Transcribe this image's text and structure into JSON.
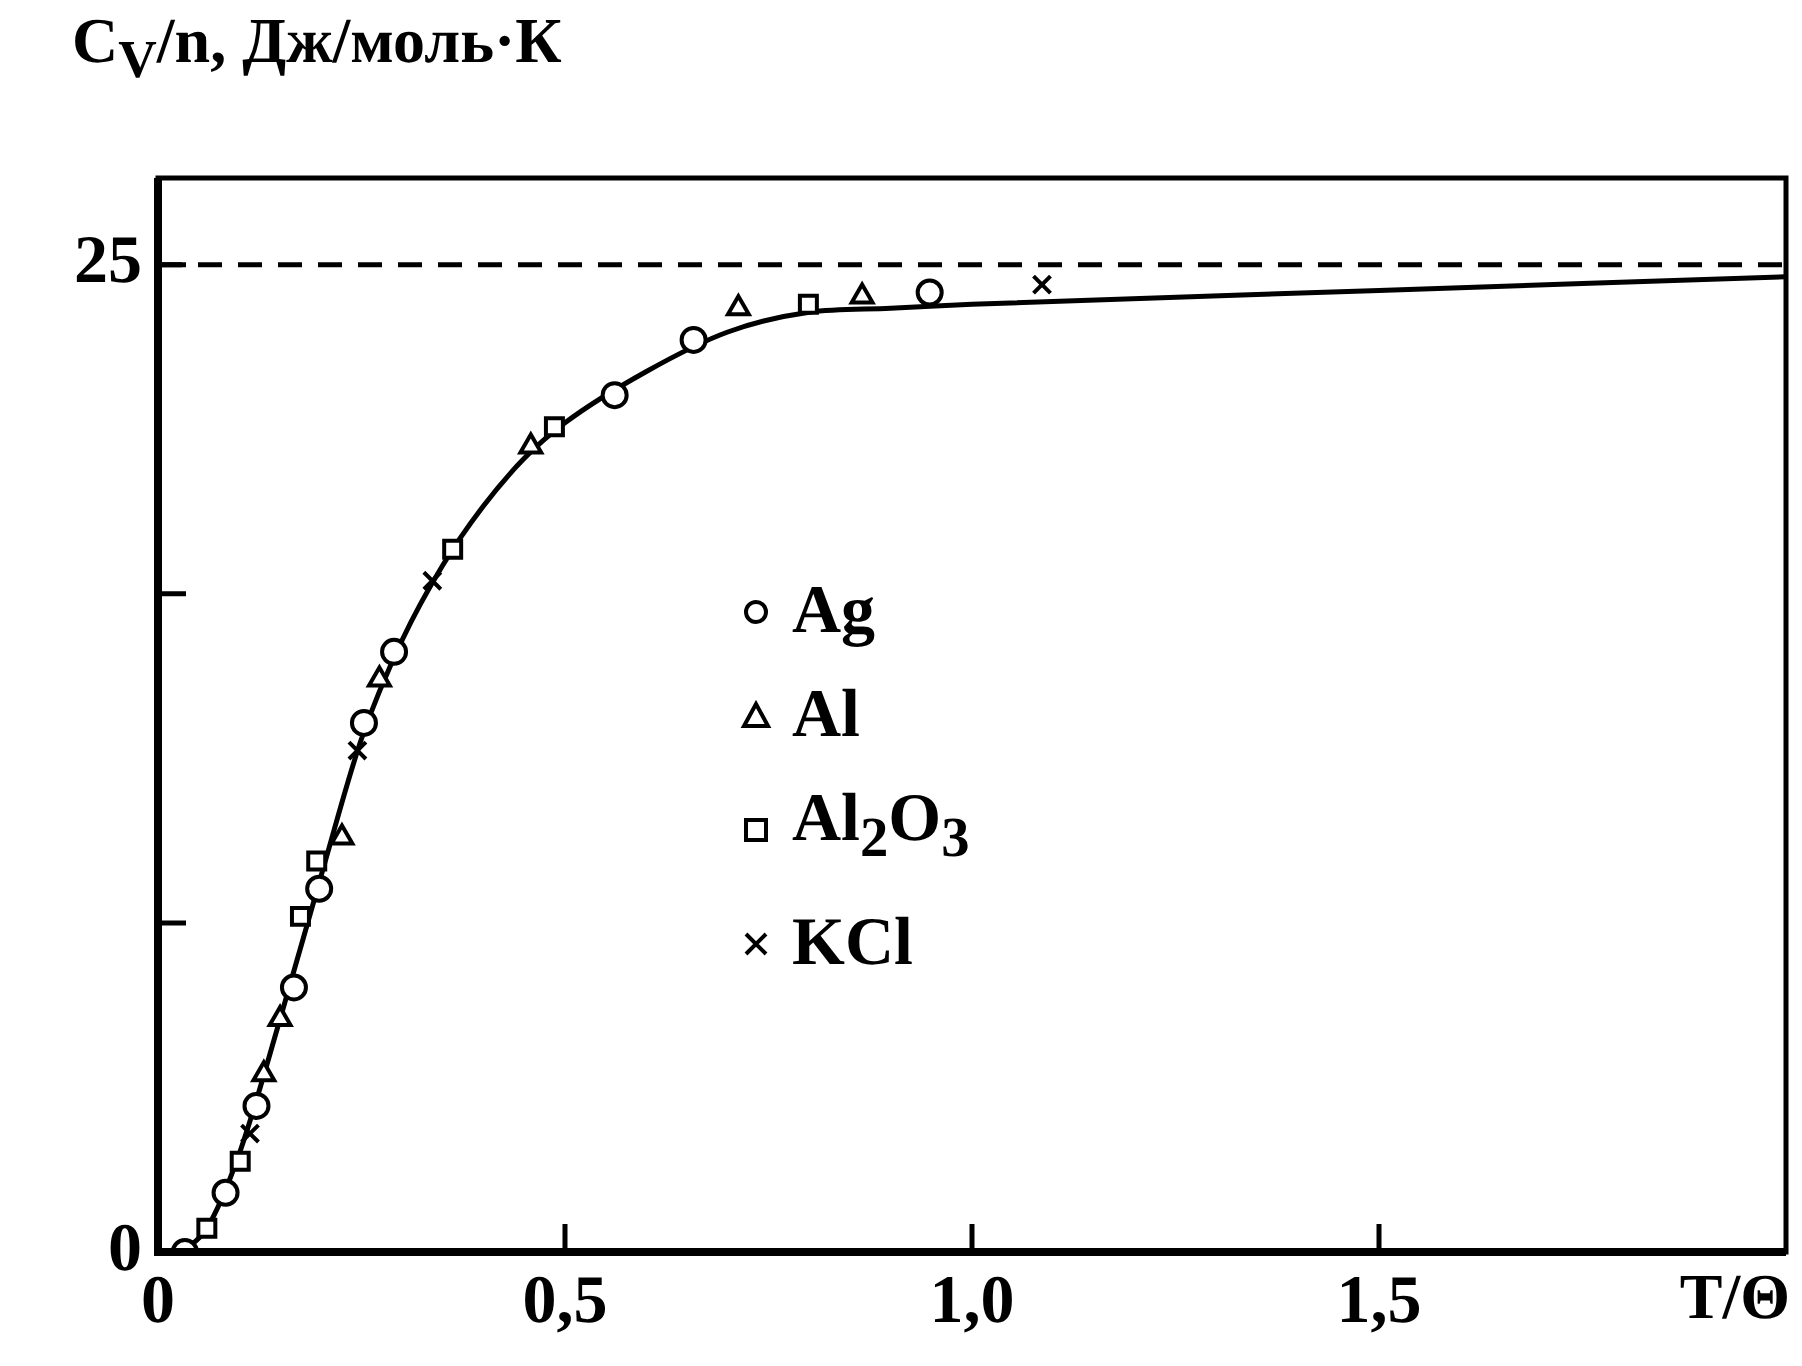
{
  "chart_data": {
    "type": "scatter",
    "ylabel": "C$_{V}$/n, Дж/моль·К",
    "xlabel": "T/Θ",
    "xlim": [
      0,
      2
    ],
    "xticks": [
      0,
      {
        "value": 0.5,
        "label": "0,5"
      },
      {
        "value": 1,
        "label": "1,0"
      },
      {
        "value": 1.5,
        "label": "1,5"
      }
    ],
    "ylim": [
      0,
      27.2
    ],
    "yticks": [
      0,
      {
        "value": 8.33,
        "label": null
      },
      {
        "value": 16.67,
        "label": null
      },
      25
    ],
    "grid": false,
    "legend": "center",
    "ref_lines": [
      {
        "axis": "y",
        "value": 25,
        "line_style": "dashed",
        "color": "#000000"
      }
    ],
    "series": [
      {
        "name": "Ag",
        "type": "scatter",
        "marker": "circle",
        "color": "#000000",
        "x": [
          0.033,
          0.083,
          0.121,
          0.167,
          0.198,
          0.253,
          0.29,
          0.561,
          0.658,
          0.948
        ],
        "values": [
          0,
          1.5,
          3.7,
          6.7,
          9.2,
          13.4,
          15.2,
          21.7,
          23.1,
          24.3
        ]
      },
      {
        "name": "Al",
        "type": "scatter",
        "marker": "triangle",
        "color": "#000000",
        "x": [
          0.13,
          0.15,
          0.226,
          0.272,
          0.458,
          0.713,
          0.865
        ],
        "values": [
          4.5,
          5.9,
          10.5,
          14.5,
          20.4,
          23.9,
          24.2
        ]
      },
      {
        "name": "Al$_{2}$O$_{3}$",
        "type": "scatter",
        "marker": "square",
        "color": "#000000",
        "x": [
          0.06,
          0.101,
          0.175,
          0.195,
          0.362,
          0.487,
          0.799
        ],
        "values": [
          0.6,
          2.3,
          8.5,
          9.9,
          17.8,
          20.9,
          24
        ]
      },
      {
        "name": "KCl",
        "type": "scatter",
        "marker": "cross",
        "color": "#000000",
        "x": [
          0.113,
          0.245,
          0.337,
          1.086
        ],
        "values": [
          3,
          12.7,
          17,
          24.5
        ]
      },
      {
        "type": "line",
        "marker": "none",
        "line_style": "solid",
        "color": "#000000",
        "x": [
          0.03,
          0.06,
          0.1,
          0.15,
          0.2,
          0.25,
          0.3,
          0.35,
          0.4,
          0.45,
          0.5,
          0.6,
          0.7,
          0.8,
          0.9,
          1,
          1.5,
          2
        ],
        "values": [
          0,
          0.6,
          2.5,
          5.9,
          9.5,
          13,
          15.5,
          17.4,
          18.9,
          20.1,
          21,
          22.3,
          23.3,
          23.8,
          23.9,
          24,
          24.35,
          24.7
        ]
      }
    ]
  }
}
